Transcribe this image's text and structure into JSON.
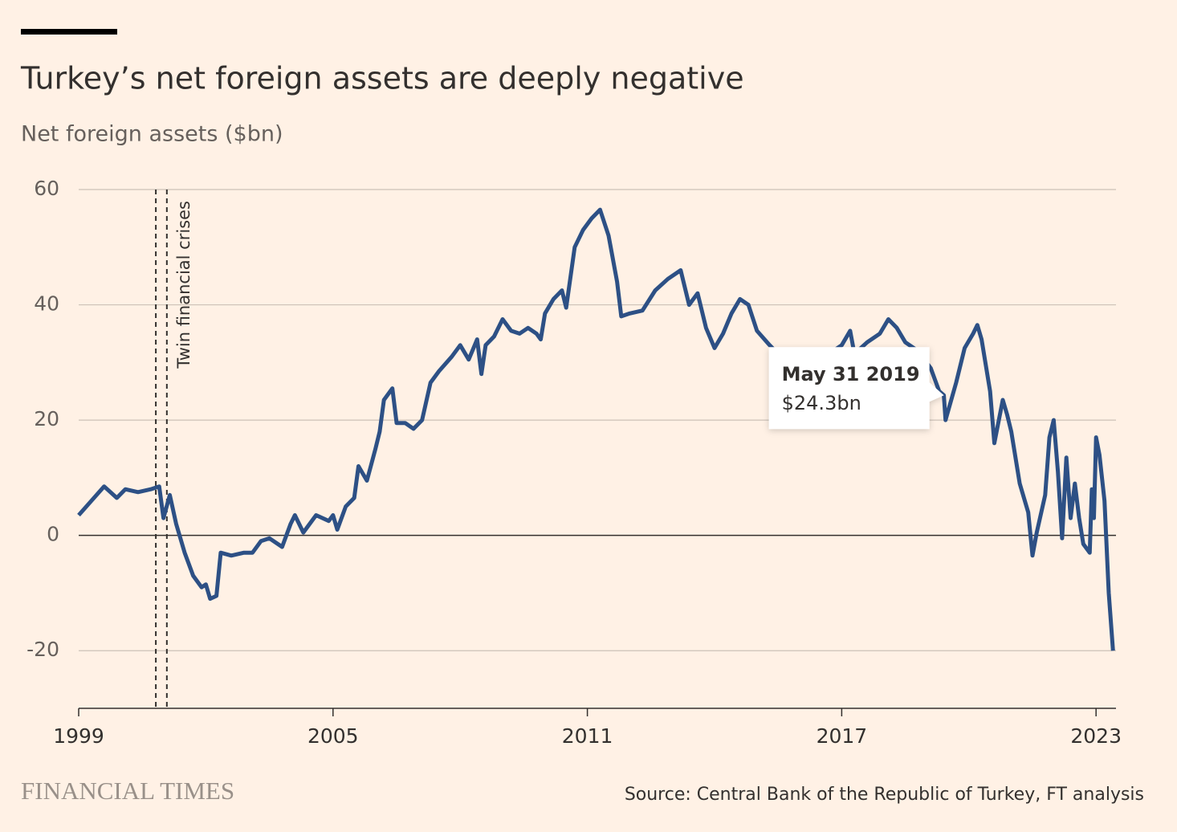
{
  "chart_data": {
    "type": "line",
    "title": "Turkey’s net foreign assets are deeply negative",
    "subtitle": "Net foreign assets ($bn)",
    "source": "Source: Central Bank of the Republic of Turkey, FT analysis",
    "brand": "FINANCIAL TIMES",
    "color": "#2d5085",
    "x": [
      1999.0,
      1999.3,
      1999.6,
      1999.9,
      2000.1,
      2000.4,
      2000.7,
      2000.9,
      2001.0,
      2001.15,
      2001.3,
      2001.5,
      2001.7,
      2001.9,
      2002.0,
      2002.1,
      2002.25,
      2002.35,
      2002.6,
      2002.9,
      2003.1,
      2003.3,
      2003.5,
      2003.8,
      2004.0,
      2004.1,
      2004.3,
      2004.6,
      2004.9,
      2005.0,
      2005.1,
      2005.3,
      2005.5,
      2005.6,
      2005.8,
      2006.0,
      2006.1,
      2006.2,
      2006.4,
      2006.5,
      2006.7,
      2006.9,
      2007.1,
      2007.3,
      2007.5,
      2007.8,
      2008.0,
      2008.2,
      2008.4,
      2008.5,
      2008.6,
      2008.8,
      2009.0,
      2009.2,
      2009.4,
      2009.6,
      2009.8,
      2009.9,
      2010.0,
      2010.2,
      2010.4,
      2010.5,
      2010.7,
      2010.9,
      2011.1,
      2011.3,
      2011.5,
      2011.7,
      2011.8,
      2012.0,
      2012.3,
      2012.6,
      2012.9,
      2013.2,
      2013.4,
      2013.6,
      2013.8,
      2014.0,
      2014.2,
      2014.4,
      2014.6,
      2014.8,
      2015.0,
      2015.3,
      2015.5,
      2016.0,
      2016.5,
      2017.0,
      2017.2,
      2017.3,
      2017.6,
      2017.9,
      2018.1,
      2018.3,
      2018.5,
      2018.8,
      2019.1,
      2019.3,
      2019.41,
      2019.45,
      2019.7,
      2019.9,
      2020.1,
      2020.2,
      2020.3,
      2020.5,
      2020.6,
      2020.8,
      2020.9,
      2021.0,
      2021.2,
      2021.4,
      2021.5,
      2021.6,
      2021.8,
      2021.9,
      2022.0,
      2022.1,
      2022.2,
      2022.3,
      2022.4,
      2022.5,
      2022.6,
      2022.7,
      2022.85,
      2022.9,
      2022.95,
      2023.0,
      2023.08,
      2023.2,
      2023.3,
      2023.4
    ],
    "values": [
      3.5,
      6,
      8.5,
      6.5,
      8,
      7.5,
      8,
      8.5,
      3,
      7,
      2,
      -3,
      -7,
      -9,
      -8.5,
      -11,
      -10.5,
      -3,
      -3.5,
      -3,
      -3,
      -1,
      -0.5,
      -2,
      2,
      3.5,
      0.5,
      3.5,
      2.5,
      3.5,
      1,
      5,
      6.5,
      12,
      9.5,
      15,
      18,
      23.5,
      25.5,
      19.5,
      19.5,
      18.5,
      20,
      26.5,
      28.5,
      31,
      33,
      30.5,
      34,
      28,
      33,
      34.5,
      37.5,
      35.5,
      35,
      36,
      35,
      34,
      38.5,
      41,
      42.5,
      39.5,
      50,
      53,
      55,
      56.5,
      52,
      44,
      38,
      38.5,
      39,
      42.5,
      44.5,
      46,
      40,
      42,
      36,
      32.5,
      35,
      38.5,
      41,
      40,
      35.5,
      33,
      31.5,
      30,
      30.5,
      33,
      35.5,
      31.5,
      33.5,
      35,
      37.5,
      36,
      33.5,
      32,
      29,
      25,
      24.3,
      20,
      26.5,
      32.5,
      35,
      36.5,
      34,
      25,
      16,
      23.5,
      21,
      18,
      9,
      4,
      -3.5,
      0.5,
      7,
      17,
      20,
      11,
      -0.5,
      13.5,
      3,
      9,
      3,
      -1.5,
      -3,
      8,
      3,
      17,
      14,
      6,
      -10,
      -20
    ],
    "xlim": [
      1999,
      2023.47
    ],
    "xticks": [
      1999,
      2005,
      2011,
      2017,
      2023
    ],
    "ylim": [
      -30,
      60
    ],
    "yticks": [
      -20,
      0,
      20,
      40,
      60
    ],
    "grid": true,
    "annotation": {
      "text": "Twin financial crises",
      "x": [
        2000.82,
        2001.08
      ]
    },
    "tooltip": {
      "date": "May 31 2019",
      "text": "$24.3bn",
      "x": 2019.41,
      "value": 24.3
    }
  }
}
